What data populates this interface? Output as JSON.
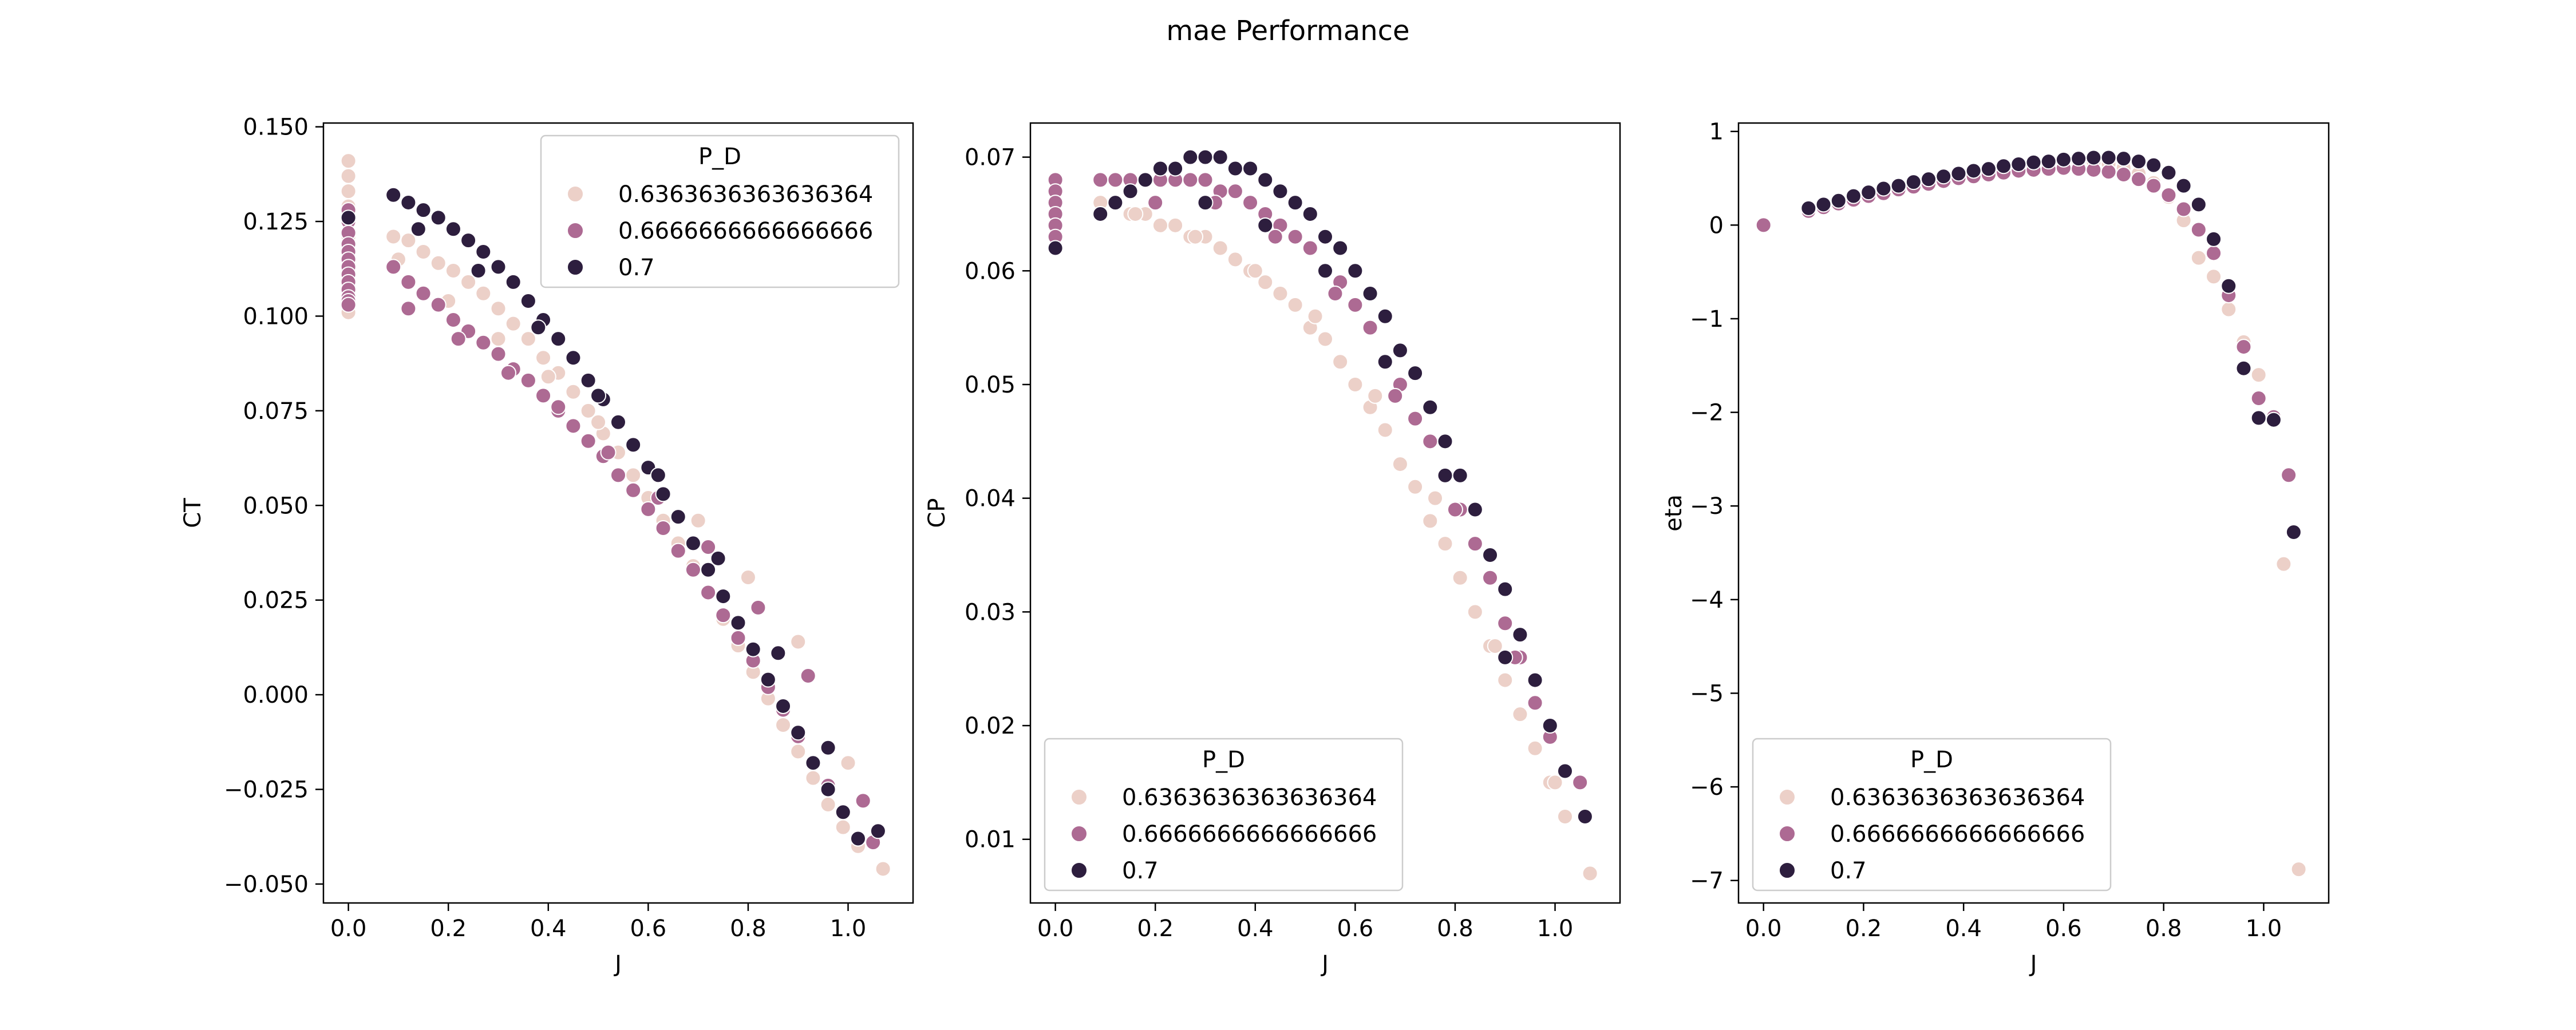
{
  "figure": {
    "title": "mae Performance"
  },
  "chart_data": [
    {
      "type": "scatter",
      "id": "ct",
      "xlabel": "J",
      "ylabel": "CT",
      "xlim": [
        -0.05,
        1.13
      ],
      "ylim": [
        -0.055,
        0.151
      ],
      "xticks": [
        0.0,
        0.2,
        0.4,
        0.6,
        0.8,
        1.0
      ],
      "xtick_labels": [
        "0.0",
        "0.2",
        "0.4",
        "0.6",
        "0.8",
        "1.0"
      ],
      "yticks": [
        -0.05,
        -0.025,
        0.0,
        0.025,
        0.05,
        0.075,
        0.1,
        0.125,
        0.15
      ],
      "ytick_labels": [
        "−0.050",
        "−0.025",
        "0.000",
        "0.025",
        "0.050",
        "0.075",
        "0.100",
        "0.125",
        "0.150"
      ],
      "legend": {
        "title": "P_D",
        "location": "upper right"
      },
      "series": [
        {
          "name": "0.6363636363636364",
          "color": "#ecd0c8",
          "x": [
            0,
            0,
            0,
            0,
            0,
            0,
            0,
            0,
            0,
            0,
            0,
            0,
            0,
            0,
            0.09,
            0.12,
            0.15,
            0.18,
            0.21,
            0.24,
            0.27,
            0.3,
            0.33,
            0.36,
            0.39,
            0.42,
            0.45,
            0.48,
            0.51,
            0.54,
            0.57,
            0.6,
            0.63,
            0.66,
            0.69,
            0.72,
            0.75,
            0.78,
            0.81,
            0.84,
            0.87,
            0.9,
            0.93,
            0.96,
            0.99,
            1.02,
            1.07,
            0.1,
            0.2,
            0.3,
            0.4,
            0.5,
            0.6,
            0.7,
            0.8,
            0.9,
            1.0
          ],
          "y": [
            0.141,
            0.137,
            0.133,
            0.129,
            0.125,
            0.121,
            0.118,
            0.115,
            0.112,
            0.109,
            0.106,
            0.104,
            0.102,
            0.101,
            0.121,
            0.12,
            0.117,
            0.114,
            0.112,
            0.109,
            0.106,
            0.102,
            0.098,
            0.094,
            0.089,
            0.085,
            0.08,
            0.075,
            0.069,
            0.064,
            0.058,
            0.052,
            0.046,
            0.04,
            0.034,
            0.027,
            0.02,
            0.013,
            0.006,
            -0.001,
            -0.008,
            -0.015,
            -0.022,
            -0.029,
            -0.035,
            -0.04,
            -0.046,
            0.115,
            0.104,
            0.094,
            0.084,
            0.072,
            0.06,
            0.046,
            0.031,
            0.014,
            -0.018
          ]
        },
        {
          "name": "0.6666666666666666",
          "color": "#ad6a93",
          "x": [
            0,
            0,
            0,
            0,
            0,
            0,
            0,
            0,
            0,
            0,
            0,
            0,
            0,
            0.09,
            0.12,
            0.15,
            0.18,
            0.21,
            0.24,
            0.27,
            0.3,
            0.33,
            0.36,
            0.39,
            0.42,
            0.45,
            0.48,
            0.51,
            0.54,
            0.57,
            0.6,
            0.63,
            0.66,
            0.69,
            0.72,
            0.75,
            0.78,
            0.81,
            0.84,
            0.87,
            0.9,
            0.93,
            0.96,
            0.99,
            1.02,
            1.05,
            0.12,
            0.22,
            0.32,
            0.42,
            0.52,
            0.62,
            0.72,
            0.82,
            0.92,
            1.03
          ],
          "y": [
            0.128,
            0.125,
            0.122,
            0.119,
            0.117,
            0.115,
            0.113,
            0.111,
            0.109,
            0.107,
            0.105,
            0.104,
            0.103,
            0.113,
            0.109,
            0.106,
            0.103,
            0.099,
            0.096,
            0.093,
            0.09,
            0.086,
            0.083,
            0.079,
            0.075,
            0.071,
            0.067,
            0.063,
            0.058,
            0.054,
            0.049,
            0.044,
            0.038,
            0.033,
            0.027,
            0.021,
            0.015,
            0.009,
            0.002,
            -0.004,
            -0.011,
            -0.018,
            -0.024,
            -0.031,
            -0.038,
            -0.039,
            0.102,
            0.094,
            0.085,
            0.076,
            0.064,
            0.052,
            0.039,
            0.023,
            0.005,
            -0.028
          ]
        },
        {
          "name": "0.7",
          "color": "#2d1e3e",
          "x": [
            0,
            0.09,
            0.12,
            0.15,
            0.18,
            0.21,
            0.24,
            0.27,
            0.3,
            0.33,
            0.36,
            0.39,
            0.42,
            0.45,
            0.48,
            0.51,
            0.54,
            0.57,
            0.6,
            0.63,
            0.66,
            0.69,
            0.72,
            0.75,
            0.78,
            0.81,
            0.84,
            0.87,
            0.9,
            0.93,
            0.96,
            0.99,
            1.02,
            1.06,
            0.14,
            0.26,
            0.38,
            0.5,
            0.62,
            0.74,
            0.86,
            0.96
          ],
          "y": [
            0.126,
            0.132,
            0.13,
            0.128,
            0.126,
            0.123,
            0.12,
            0.117,
            0.113,
            0.109,
            0.104,
            0.099,
            0.094,
            0.089,
            0.083,
            0.078,
            0.072,
            0.066,
            0.06,
            0.053,
            0.047,
            0.04,
            0.033,
            0.026,
            0.019,
            0.012,
            0.004,
            -0.003,
            -0.01,
            -0.018,
            -0.025,
            -0.031,
            -0.038,
            -0.036,
            0.123,
            0.112,
            0.097,
            0.079,
            0.058,
            0.036,
            0.011,
            -0.014
          ]
        }
      ]
    },
    {
      "type": "scatter",
      "id": "cp",
      "xlabel": "J",
      "ylabel": "CP",
      "xlim": [
        -0.05,
        1.13
      ],
      "ylim": [
        0.0044,
        0.073
      ],
      "xticks": [
        0.0,
        0.2,
        0.4,
        0.6,
        0.8,
        1.0
      ],
      "xtick_labels": [
        "0.0",
        "0.2",
        "0.4",
        "0.6",
        "0.8",
        "1.0"
      ],
      "yticks": [
        0.01,
        0.02,
        0.03,
        0.04,
        0.05,
        0.06,
        0.07
      ],
      "ytick_labels": [
        "0.01",
        "0.02",
        "0.03",
        "0.04",
        "0.05",
        "0.06",
        "0.07"
      ],
      "legend": {
        "title": "P_D",
        "location": "lower left"
      },
      "series": [
        {
          "name": "0.6363636363636364",
          "color": "#ecd0c8",
          "x": [
            0,
            0,
            0,
            0,
            0,
            0,
            0.09,
            0.12,
            0.15,
            0.18,
            0.21,
            0.24,
            0.27,
            0.3,
            0.33,
            0.36,
            0.39,
            0.42,
            0.45,
            0.48,
            0.51,
            0.54,
            0.57,
            0.6,
            0.63,
            0.66,
            0.69,
            0.72,
            0.75,
            0.78,
            0.81,
            0.84,
            0.87,
            0.9,
            0.93,
            0.96,
            0.99,
            1.02,
            1.07,
            0.16,
            0.28,
            0.4,
            0.52,
            0.64,
            0.76,
            0.88,
            1.0
          ],
          "y": [
            0.067,
            0.066,
            0.065,
            0.064,
            0.063,
            0.062,
            0.066,
            0.066,
            0.065,
            0.065,
            0.064,
            0.064,
            0.063,
            0.063,
            0.062,
            0.061,
            0.06,
            0.059,
            0.058,
            0.057,
            0.055,
            0.054,
            0.052,
            0.05,
            0.048,
            0.046,
            0.043,
            0.041,
            0.038,
            0.036,
            0.033,
            0.03,
            0.027,
            0.024,
            0.021,
            0.018,
            0.015,
            0.012,
            0.007,
            0.065,
            0.063,
            0.06,
            0.056,
            0.049,
            0.04,
            0.027,
            0.015
          ]
        },
        {
          "name": "0.6666666666666666",
          "color": "#ad6a93",
          "x": [
            0,
            0,
            0,
            0,
            0,
            0,
            0.09,
            0.12,
            0.15,
            0.18,
            0.21,
            0.24,
            0.27,
            0.3,
            0.33,
            0.36,
            0.39,
            0.42,
            0.45,
            0.48,
            0.51,
            0.54,
            0.57,
            0.6,
            0.63,
            0.66,
            0.69,
            0.72,
            0.75,
            0.78,
            0.81,
            0.84,
            0.87,
            0.9,
            0.93,
            0.96,
            0.99,
            1.02,
            1.05,
            0.2,
            0.32,
            0.44,
            0.56,
            0.68,
            0.8,
            0.92
          ],
          "y": [
            0.068,
            0.067,
            0.066,
            0.065,
            0.064,
            0.063,
            0.068,
            0.068,
            0.068,
            0.068,
            0.068,
            0.068,
            0.068,
            0.068,
            0.067,
            0.067,
            0.066,
            0.065,
            0.064,
            0.063,
            0.062,
            0.06,
            0.059,
            0.057,
            0.055,
            0.052,
            0.05,
            0.047,
            0.045,
            0.042,
            0.039,
            0.036,
            0.033,
            0.029,
            0.026,
            0.022,
            0.019,
            0.016,
            0.015,
            0.066,
            0.066,
            0.063,
            0.058,
            0.049,
            0.039,
            0.026
          ]
        },
        {
          "name": "0.7",
          "color": "#2d1e3e",
          "x": [
            0,
            0.09,
            0.12,
            0.15,
            0.18,
            0.21,
            0.24,
            0.27,
            0.3,
            0.33,
            0.36,
            0.39,
            0.42,
            0.45,
            0.48,
            0.51,
            0.54,
            0.57,
            0.6,
            0.63,
            0.66,
            0.69,
            0.72,
            0.75,
            0.78,
            0.81,
            0.84,
            0.87,
            0.9,
            0.93,
            0.96,
            0.99,
            1.02,
            1.06,
            0.3,
            0.42,
            0.54,
            0.66,
            0.78,
            0.9
          ],
          "y": [
            0.062,
            0.065,
            0.066,
            0.067,
            0.068,
            0.069,
            0.069,
            0.07,
            0.07,
            0.07,
            0.069,
            0.069,
            0.068,
            0.067,
            0.066,
            0.065,
            0.063,
            0.062,
            0.06,
            0.058,
            0.056,
            0.053,
            0.051,
            0.048,
            0.045,
            0.042,
            0.039,
            0.035,
            0.032,
            0.028,
            0.024,
            0.02,
            0.016,
            0.012,
            0.066,
            0.064,
            0.06,
            0.052,
            0.042,
            0.026
          ]
        }
      ]
    },
    {
      "type": "scatter",
      "id": "eta",
      "xlabel": "J",
      "ylabel": "eta",
      "xlim": [
        -0.05,
        1.13
      ],
      "ylim": [
        -7.24,
        1.09
      ],
      "xticks": [
        0.0,
        0.2,
        0.4,
        0.6,
        0.8,
        1.0
      ],
      "xtick_labels": [
        "0.0",
        "0.2",
        "0.4",
        "0.6",
        "0.8",
        "1.0"
      ],
      "yticks": [
        -7,
        -6,
        -5,
        -4,
        -3,
        -2,
        -1,
        0,
        1
      ],
      "ytick_labels": [
        "−7",
        "−6",
        "−5",
        "−4",
        "−3",
        "−2",
        "−1",
        "0",
        "1"
      ],
      "legend": {
        "title": "P_D",
        "location": "lower left"
      },
      "series": [
        {
          "name": "0.6363636363636364",
          "color": "#ecd0c8",
          "x": [
            0.09,
            0.12,
            0.15,
            0.18,
            0.21,
            0.24,
            0.27,
            0.3,
            0.33,
            0.36,
            0.39,
            0.42,
            0.45,
            0.48,
            0.51,
            0.54,
            0.57,
            0.6,
            0.63,
            0.66,
            0.69,
            0.72,
            0.75,
            0.78,
            0.81,
            0.84,
            0.87,
            0.9,
            0.93,
            0.96,
            0.99,
            1.02,
            1.04,
            1.07
          ],
          "y": [
            0.17,
            0.21,
            0.26,
            0.3,
            0.34,
            0.38,
            0.41,
            0.45,
            0.48,
            0.51,
            0.54,
            0.57,
            0.6,
            0.62,
            0.64,
            0.66,
            0.67,
            0.68,
            0.68,
            0.67,
            0.65,
            0.61,
            0.55,
            0.45,
            0.3,
            0.05,
            -0.35,
            -0.55,
            -0.9,
            -1.25,
            -1.6,
            -2.05,
            -3.62,
            -6.88
          ]
        },
        {
          "name": "0.6666666666666666",
          "color": "#ad6a93",
          "x": [
            0.0,
            0.09,
            0.12,
            0.15,
            0.18,
            0.21,
            0.24,
            0.27,
            0.3,
            0.33,
            0.36,
            0.39,
            0.42,
            0.45,
            0.48,
            0.51,
            0.54,
            0.57,
            0.6,
            0.63,
            0.66,
            0.69,
            0.72,
            0.75,
            0.78,
            0.81,
            0.84,
            0.87,
            0.9,
            0.93,
            0.96,
            0.99,
            1.02,
            1.05
          ],
          "y": [
            0.0,
            0.15,
            0.19,
            0.23,
            0.27,
            0.31,
            0.34,
            0.38,
            0.41,
            0.44,
            0.47,
            0.5,
            0.52,
            0.54,
            0.56,
            0.58,
            0.59,
            0.6,
            0.61,
            0.6,
            0.59,
            0.57,
            0.54,
            0.49,
            0.42,
            0.32,
            0.17,
            -0.05,
            -0.3,
            -0.75,
            -1.3,
            -1.85,
            -2.05,
            -2.67
          ]
        },
        {
          "name": "0.7",
          "color": "#2d1e3e",
          "x": [
            0.09,
            0.12,
            0.15,
            0.18,
            0.21,
            0.24,
            0.27,
            0.3,
            0.33,
            0.36,
            0.39,
            0.42,
            0.45,
            0.48,
            0.51,
            0.54,
            0.57,
            0.6,
            0.63,
            0.66,
            0.69,
            0.72,
            0.75,
            0.78,
            0.81,
            0.84,
            0.87,
            0.9,
            0.93,
            0.96,
            0.99,
            1.02,
            1.06
          ],
          "y": [
            0.18,
            0.22,
            0.26,
            0.31,
            0.35,
            0.39,
            0.42,
            0.46,
            0.49,
            0.52,
            0.55,
            0.58,
            0.6,
            0.63,
            0.65,
            0.67,
            0.68,
            0.7,
            0.71,
            0.72,
            0.72,
            0.71,
            0.68,
            0.64,
            0.56,
            0.42,
            0.22,
            -0.15,
            -0.65,
            -1.53,
            -2.06,
            -2.08,
            -3.28
          ]
        }
      ]
    }
  ]
}
